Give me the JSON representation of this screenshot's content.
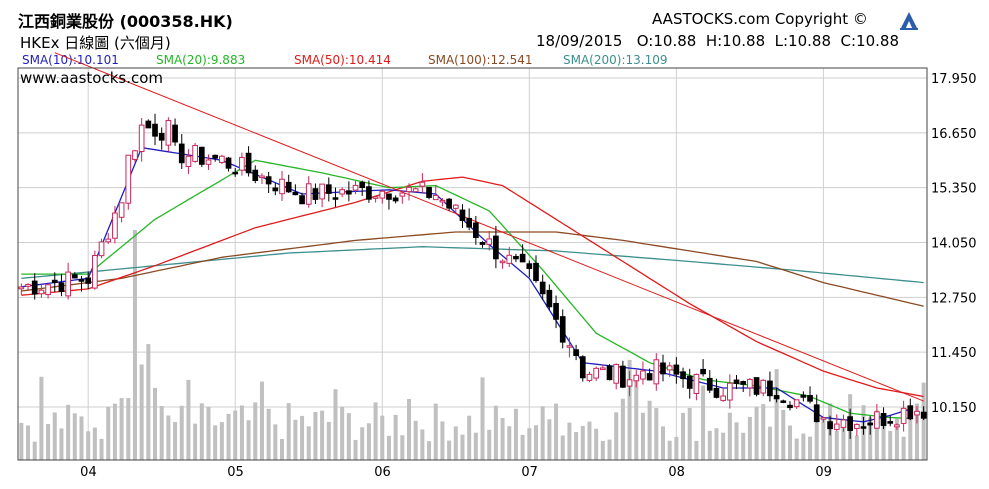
{
  "header": {
    "title": "江西銅業股份 (000358.HK)",
    "subtitle": "HKEx 日線圖 (六個月)",
    "copyright": "AASTOCKS.com Copyright ©",
    "ohlc": "18/09/2015   O:10.88  H:10.88  L:10.88  C:10.88",
    "watermark": "www.aastocks.com"
  },
  "legend": {
    "sma10": "SMA(10):10.101",
    "sma20": "SMA(20):9.883",
    "sma50": "SMA(50):10.414",
    "sma100": "SMA(100):12.541",
    "sma200": "SMA(200):13.109"
  },
  "colors": {
    "up": "#c8285a",
    "down": "#000000",
    "sma10": "#1f1fc0",
    "sma20": "#26b526",
    "sma50": "#e01b1b",
    "sma100": "#8a4a22",
    "sma200": "#3d8f8f",
    "trend": "#e01b1b",
    "volume": "#c0c0c0"
  },
  "chart_data": {
    "type": "candlestick",
    "y_ticks": [
      "17.950",
      "16.650",
      "15.350",
      "14.050",
      "12.750",
      "11.450",
      "10.150"
    ],
    "ylim": [
      9.4,
      18.55
    ],
    "x_ticks": [
      {
        "label": "04",
        "index": 10
      },
      {
        "label": "05",
        "index": 32
      },
      {
        "label": "06",
        "index": 54
      },
      {
        "label": "07",
        "index": 76
      },
      {
        "label": "08",
        "index": 98
      },
      {
        "label": "09",
        "index": 120
      }
    ],
    "trendline": {
      "from": [
        5,
        18.55
      ],
      "to": [
        135,
        10.29
      ]
    },
    "sma_anchor_points": {
      "sma10": [
        [
          0,
          13.0
        ],
        [
          10,
          13.2
        ],
        [
          18,
          16.3
        ],
        [
          30,
          16.0
        ],
        [
          42,
          15.2
        ],
        [
          55,
          15.3
        ],
        [
          62,
          15.2
        ],
        [
          70,
          14.0
        ],
        [
          76,
          13.2
        ],
        [
          84,
          11.2
        ],
        [
          95,
          11.0
        ],
        [
          105,
          10.6
        ],
        [
          113,
          10.6
        ],
        [
          120,
          9.9
        ],
        [
          126,
          9.8
        ],
        [
          130,
          9.95
        ],
        [
          133,
          10.1
        ]
      ],
      "sma20": [
        [
          0,
          13.3
        ],
        [
          10,
          13.3
        ],
        [
          20,
          14.6
        ],
        [
          35,
          16.0
        ],
        [
          45,
          15.7
        ],
        [
          55,
          15.35
        ],
        [
          62,
          15.4
        ],
        [
          70,
          14.8
        ],
        [
          78,
          13.4
        ],
        [
          86,
          11.9
        ],
        [
          94,
          11.2
        ],
        [
          102,
          10.8
        ],
        [
          110,
          10.65
        ],
        [
          118,
          10.4
        ],
        [
          124,
          10.0
        ],
        [
          130,
          9.9
        ],
        [
          133,
          9.88
        ]
      ],
      "sma50": [
        [
          0,
          12.8
        ],
        [
          10,
          12.95
        ],
        [
          20,
          13.5
        ],
        [
          35,
          14.4
        ],
        [
          50,
          15.0
        ],
        [
          60,
          15.5
        ],
        [
          66,
          15.6
        ],
        [
          72,
          15.4
        ],
        [
          80,
          14.6
        ],
        [
          90,
          13.6
        ],
        [
          100,
          12.6
        ],
        [
          110,
          11.7
        ],
        [
          120,
          11.0
        ],
        [
          128,
          10.6
        ],
        [
          135,
          10.4
        ]
      ],
      "sma100": [
        [
          0,
          12.9
        ],
        [
          15,
          13.2
        ],
        [
          30,
          13.7
        ],
        [
          50,
          14.1
        ],
        [
          65,
          14.3
        ],
        [
          80,
          14.3
        ],
        [
          90,
          14.1
        ],
        [
          100,
          13.85
        ],
        [
          110,
          13.6
        ],
        [
          120,
          13.1
        ],
        [
          128,
          12.8
        ],
        [
          135,
          12.54
        ]
      ],
      "sma200": [
        [
          0,
          13.2
        ],
        [
          20,
          13.5
        ],
        [
          40,
          13.8
        ],
        [
          60,
          13.95
        ],
        [
          80,
          13.85
        ],
        [
          100,
          13.6
        ],
        [
          115,
          13.4
        ],
        [
          125,
          13.25
        ],
        [
          135,
          13.1
        ]
      ]
    }
  }
}
